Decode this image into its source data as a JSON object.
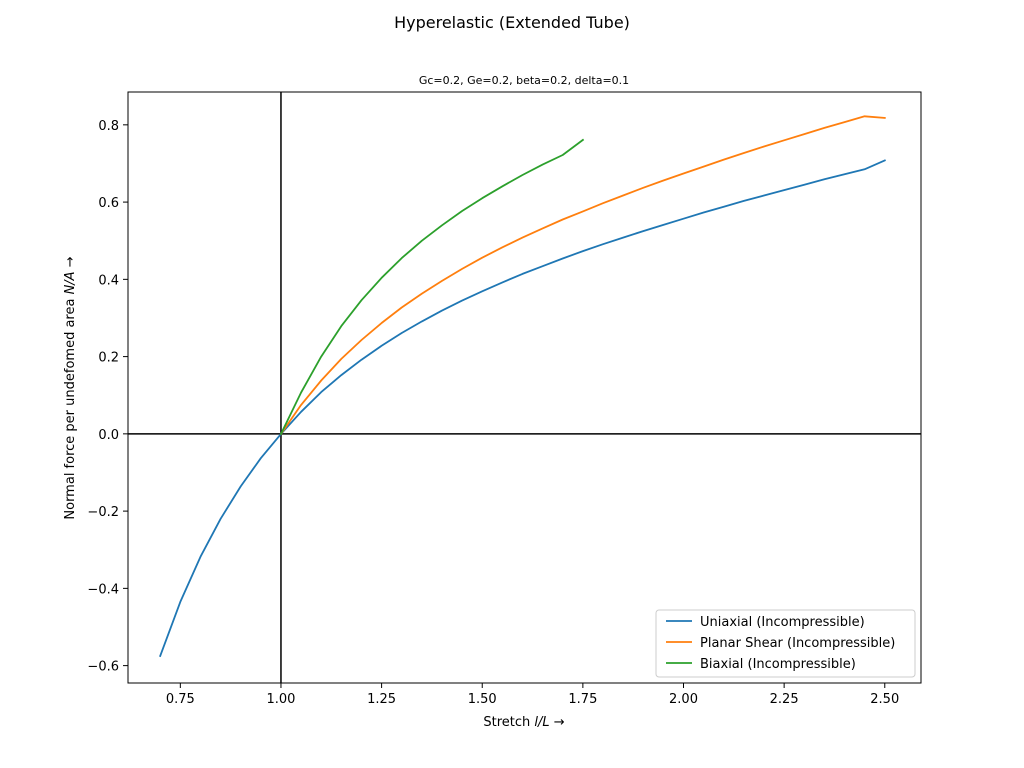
{
  "chart_data": {
    "type": "line",
    "title": "Hyperelastic (Extended Tube)",
    "subtitle": "Gc=0.2, Ge=0.2, beta=0.2, delta=0.1",
    "xlabel_text": "Stretch ",
    "xlabel_math": "l/L",
    "xlabel_arrow": "  →",
    "ylabel_text": "Normal force per undefomed area ",
    "ylabel_math": "N/A",
    "ylabel_arrow": "  →",
    "xlim": [
      0.62,
      2.59
    ],
    "ylim": [
      -0.645,
      0.885
    ],
    "xticks": [
      0.75,
      1.0,
      1.25,
      1.5,
      1.75,
      2.0,
      2.25,
      2.5
    ],
    "xtick_labels": [
      "0.75",
      "1.00",
      "1.25",
      "1.50",
      "1.75",
      "2.00",
      "2.25",
      "2.50"
    ],
    "yticks": [
      -0.6,
      -0.4,
      -0.2,
      0.0,
      0.2,
      0.4,
      0.6,
      0.8
    ],
    "ytick_labels": [
      "−0.6",
      "−0.4",
      "−0.2",
      "0.0",
      "0.2",
      "0.4",
      "0.6",
      "0.8"
    ],
    "grid": false,
    "legend_position": "lower-right",
    "reference_lines": {
      "x": 1.0,
      "y": 0.0
    },
    "series": [
      {
        "name": "Uniaxial (Incompressible)",
        "color": "#1f77b4",
        "x": [
          0.7,
          0.75,
          0.8,
          0.85,
          0.9,
          0.95,
          1.0,
          1.05,
          1.1,
          1.15,
          1.2,
          1.25,
          1.3,
          1.35,
          1.4,
          1.45,
          1.5,
          1.55,
          1.6,
          1.65,
          1.7,
          1.75,
          1.8,
          1.85,
          1.9,
          1.95,
          2.0,
          2.05,
          2.1,
          2.15,
          2.2,
          2.25,
          2.3,
          2.35,
          2.4,
          2.45,
          2.5
        ],
        "y": [
          -0.575,
          -0.435,
          -0.318,
          -0.22,
          -0.136,
          -0.063,
          0.0,
          0.057,
          0.108,
          0.152,
          0.192,
          0.228,
          0.261,
          0.291,
          0.319,
          0.345,
          0.369,
          0.392,
          0.414,
          0.434,
          0.454,
          0.473,
          0.491,
          0.508,
          0.525,
          0.541,
          0.557,
          0.573,
          0.588,
          0.603,
          0.617,
          0.631,
          0.645,
          0.659,
          0.672,
          0.685,
          0.708
        ]
      },
      {
        "name": "Planar Shear (Incompressible)",
        "color": "#ff7f0e",
        "x": [
          1.0,
          1.05,
          1.1,
          1.15,
          1.2,
          1.25,
          1.3,
          1.35,
          1.4,
          1.45,
          1.5,
          1.55,
          1.6,
          1.65,
          1.7,
          1.75,
          1.8,
          1.85,
          1.9,
          1.95,
          2.0,
          2.05,
          2.1,
          2.15,
          2.2,
          2.25,
          2.3,
          2.35,
          2.4,
          2.45,
          2.5
        ],
        "y": [
          0.0,
          0.075,
          0.138,
          0.194,
          0.243,
          0.287,
          0.327,
          0.363,
          0.396,
          0.427,
          0.456,
          0.483,
          0.508,
          0.532,
          0.555,
          0.576,
          0.597,
          0.617,
          0.637,
          0.656,
          0.674,
          0.692,
          0.71,
          0.727,
          0.744,
          0.76,
          0.776,
          0.792,
          0.807,
          0.822,
          0.818
        ]
      },
      {
        "name": "Biaxial (Incompressible)",
        "color": "#2ca02c",
        "x": [
          1.0,
          1.05,
          1.1,
          1.15,
          1.2,
          1.25,
          1.3,
          1.35,
          1.4,
          1.45,
          1.5,
          1.55,
          1.6,
          1.65,
          1.7,
          1.75
        ],
        "y": [
          0.0,
          0.107,
          0.2,
          0.279,
          0.346,
          0.404,
          0.455,
          0.5,
          0.54,
          0.577,
          0.61,
          0.641,
          0.67,
          0.697,
          0.722,
          0.761
        ]
      }
    ]
  }
}
